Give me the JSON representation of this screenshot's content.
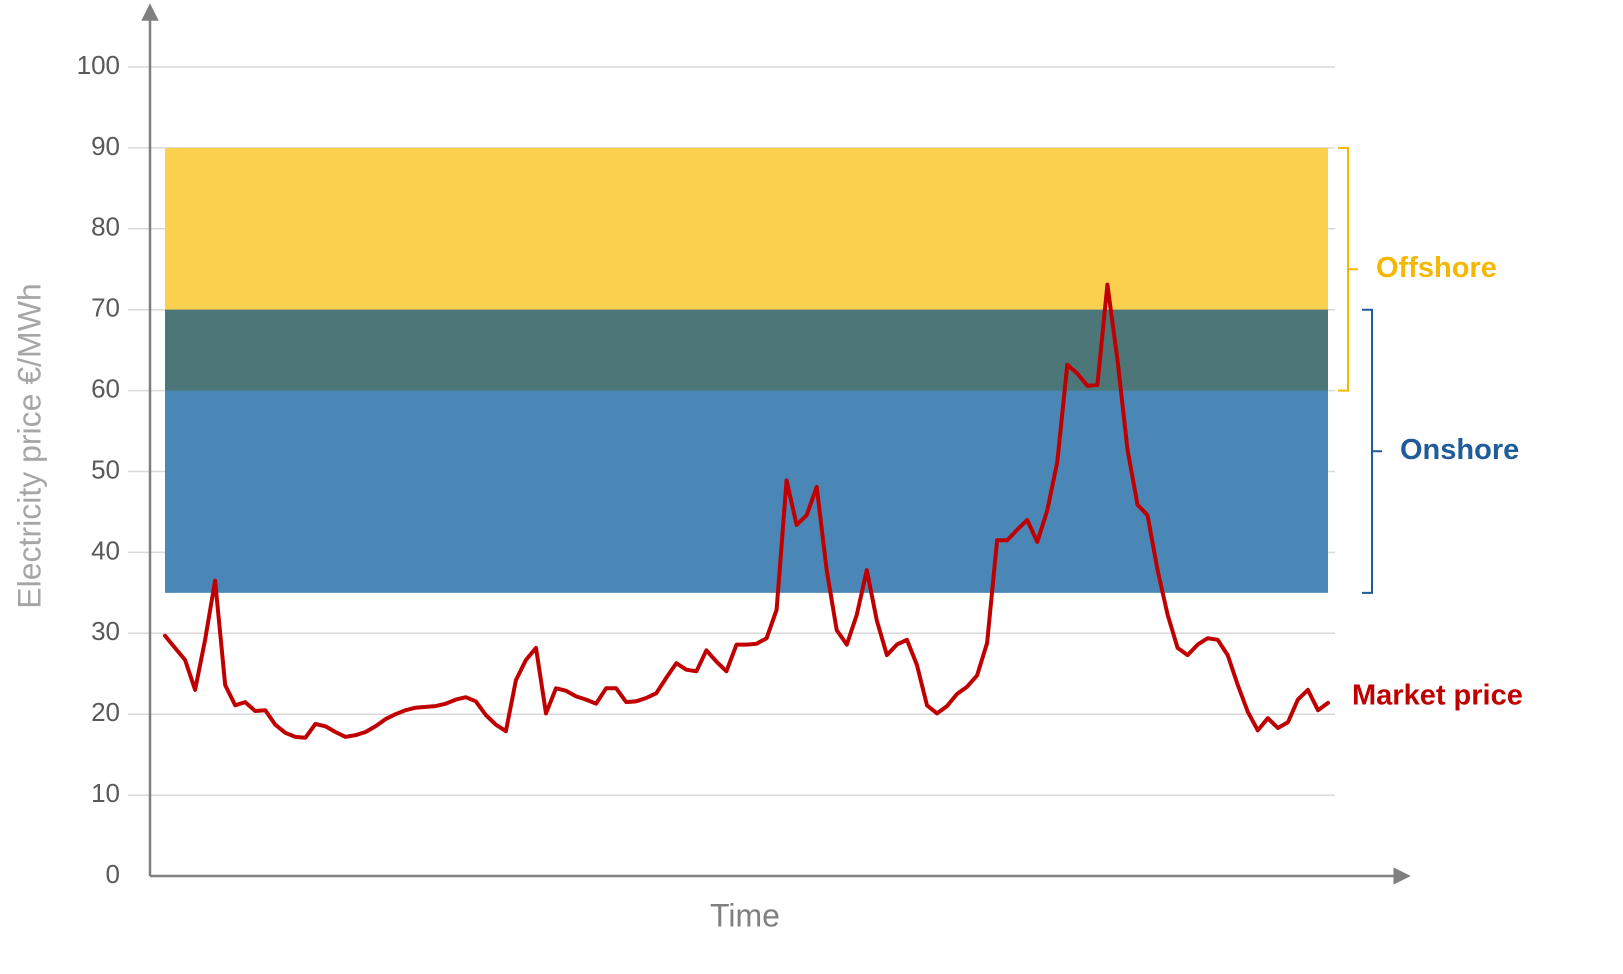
{
  "chart_data": {
    "type": "line",
    "y_label": "Electricity price €/MWh",
    "x_label": "Time",
    "ylim": [
      0,
      100
    ],
    "yticks": [
      0,
      10,
      20,
      30,
      40,
      50,
      60,
      70,
      80,
      90,
      100
    ],
    "grid": true,
    "bands": [
      {
        "name": "Offshore",
        "range": [
          60,
          90
        ],
        "color": "#fcd04f",
        "label_color": "#f5b800"
      },
      {
        "name": "Onshore",
        "range": [
          35,
          70
        ],
        "color": "#4a86b6",
        "label_color": "#1f5c99"
      }
    ],
    "overlap_color": "#4d7678",
    "series": [
      {
        "name": "Market price",
        "color": "#c00000",
        "values": [
          29.7,
          28.2,
          26.7,
          23.0,
          29.2,
          36.5,
          23.6,
          21.1,
          21.5,
          20.4,
          20.5,
          18.7,
          17.7,
          17.2,
          17.1,
          18.8,
          18.5,
          17.8,
          17.2,
          17.4,
          17.8,
          18.5,
          19.4,
          20.0,
          20.5,
          20.8,
          20.9,
          21.0,
          21.3,
          21.8,
          22.1,
          21.6,
          19.9,
          18.7,
          17.9,
          24.2,
          26.7,
          28.2,
          20.1,
          23.2,
          22.9,
          22.2,
          21.8,
          21.3,
          23.2,
          23.2,
          21.5,
          21.6,
          22.0,
          22.6,
          24.5,
          26.3,
          25.5,
          25.3,
          27.9,
          26.5,
          25.3,
          28.6,
          28.6,
          28.7,
          29.4,
          32.9,
          48.9,
          43.4,
          44.6,
          48.1,
          37.8,
          30.4,
          28.6,
          32.3,
          37.8,
          31.6,
          27.3,
          28.6,
          29.2,
          26.1,
          21.1,
          20.1,
          21.0,
          22.5,
          23.4,
          24.8,
          28.8,
          41.5,
          41.5,
          42.8,
          44.0,
          41.3,
          45.2,
          51.2,
          63.2,
          62.1,
          60.6,
          60.7,
          73.1,
          63.8,
          52.7,
          45.9,
          44.6,
          37.8,
          32.3,
          28.2,
          27.3,
          28.6,
          29.4,
          29.2,
          27.3,
          23.6,
          20.3,
          18.0,
          19.5,
          18.3,
          19.0,
          21.8,
          23.0,
          20.5,
          21.4
        ]
      }
    ]
  }
}
